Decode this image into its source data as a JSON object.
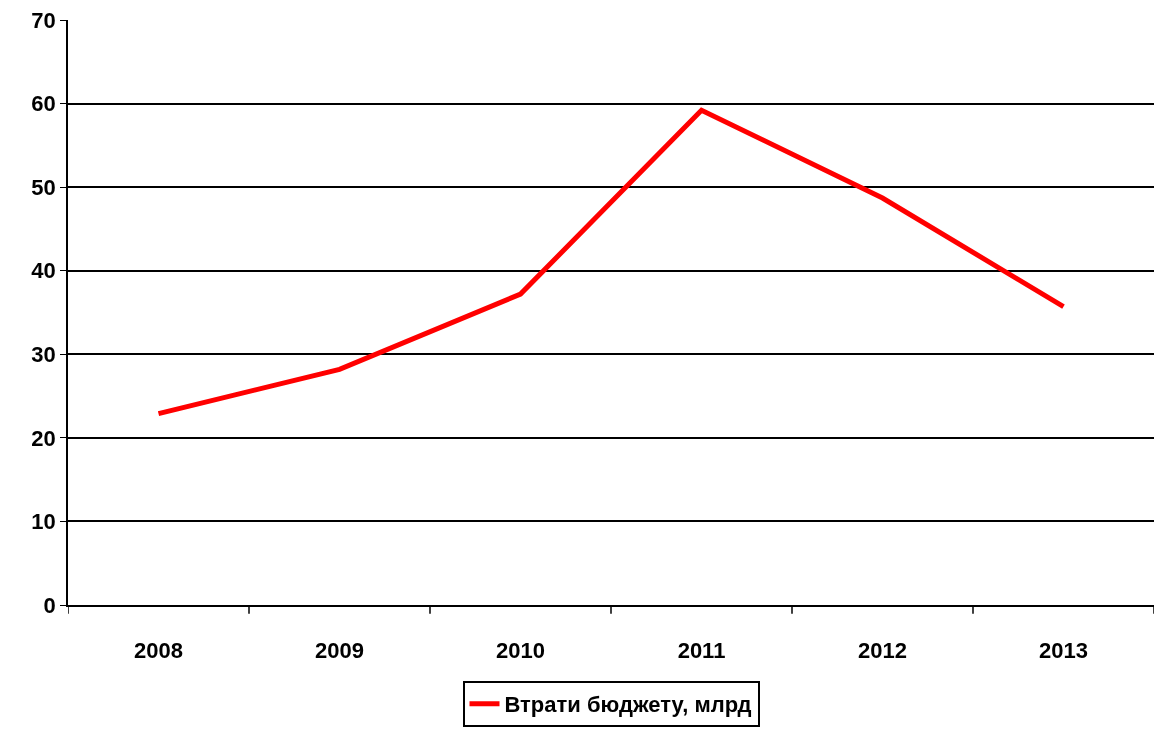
{
  "chart_data": {
    "type": "line",
    "categories": [
      "2008",
      "2009",
      "2010",
      "2011",
      "2012",
      "2013"
    ],
    "series": [
      {
        "name": "Втрати бюджету, млрд",
        "color": "#ff0000",
        "values": [
          22.9,
          28.2,
          37.2,
          59.2,
          48.7,
          35.7
        ]
      }
    ],
    "ylim": [
      0,
      70
    ],
    "yticks": [
      0,
      10,
      20,
      30,
      40,
      50,
      60,
      70
    ],
    "grid": "y",
    "legend": "bottom",
    "marker": "none",
    "line_style": "solid"
  }
}
